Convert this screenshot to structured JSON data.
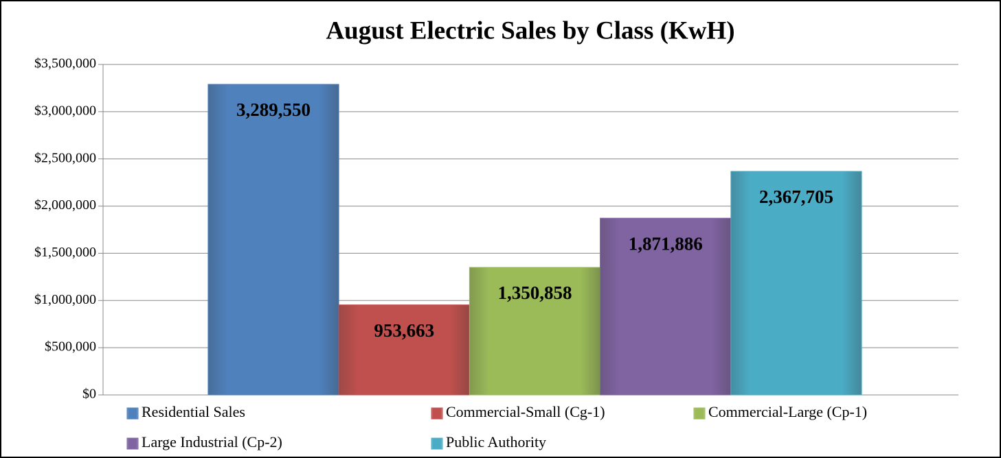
{
  "chart_data": {
    "type": "bar",
    "title": "August Electric Sales by Class (KwH)",
    "categories": [
      null
    ],
    "series": [
      {
        "name": "Residential Sales",
        "color": "#4f81bd",
        "values": [
          3289550
        ],
        "value_labels": [
          "3,289,550"
        ]
      },
      {
        "name": "Commercial-Small (Cg-1)",
        "color": "#c0504d",
        "values": [
          953663
        ],
        "value_labels": [
          "953,663"
        ]
      },
      {
        "name": "Commercial-Large (Cp-1)",
        "color": "#9bbb59",
        "values": [
          1350858
        ],
        "value_labels": [
          "1,350,858"
        ]
      },
      {
        "name": "Large Industrial (Cp-2)",
        "color": "#8064a2",
        "values": [
          1871886
        ],
        "value_labels": [
          "1,871,886"
        ]
      },
      {
        "name": "Public Authority",
        "color": "#4bacc6",
        "values": [
          2367705
        ],
        "value_labels": [
          "2,367,705"
        ]
      }
    ],
    "ylim": [
      0,
      3500000
    ],
    "yticks": [
      {
        "value": 0,
        "label": "$0"
      },
      {
        "value": 500000,
        "label": "$500,000"
      },
      {
        "value": 1000000,
        "label": "$1,000,000"
      },
      {
        "value": 1500000,
        "label": "$1,500,000"
      },
      {
        "value": 2000000,
        "label": "$2,000,000"
      },
      {
        "value": 2500000,
        "label": "$2,500,000"
      },
      {
        "value": 3000000,
        "label": "$3,000,000"
      },
      {
        "value": 3500000,
        "label": "$3,500,000"
      }
    ],
    "grid": true,
    "legend": "bottom"
  }
}
